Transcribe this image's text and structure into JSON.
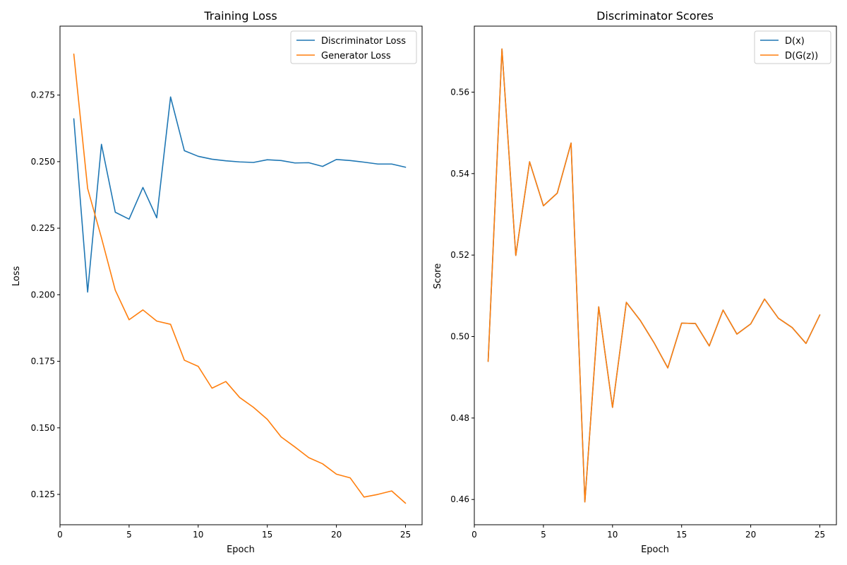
{
  "chart_data": [
    {
      "type": "line",
      "title": "Training Loss",
      "xlabel": "Epoch",
      "ylabel": "Loss",
      "xlim": [
        0.0,
        26.2
      ],
      "ylim": [
        0.1136,
        0.3009
      ],
      "xticks": [
        0,
        5,
        10,
        15,
        20,
        25
      ],
      "yticks": [
        0.125,
        0.15,
        0.175,
        0.2,
        0.225,
        0.25,
        0.275
      ],
      "ytick_decimals": 3,
      "legend_position": "top-right",
      "x": [
        1,
        2,
        3,
        4,
        5,
        6,
        7,
        8,
        9,
        10,
        11,
        12,
        13,
        14,
        15,
        16,
        17,
        18,
        19,
        20,
        21,
        22,
        23,
        24,
        25
      ],
      "series": [
        {
          "name": "Discriminator Loss",
          "color": "#1f77b4",
          "values": [
            0.2661,
            0.201,
            0.2565,
            0.231,
            0.2284,
            0.2403,
            0.2289,
            0.2743,
            0.2541,
            0.252,
            0.2509,
            0.2503,
            0.2499,
            0.2497,
            0.2507,
            0.2504,
            0.2495,
            0.2496,
            0.2482,
            0.2508,
            0.2504,
            0.2498,
            0.2491,
            0.2491,
            0.2479
          ]
        },
        {
          "name": "Generator Loss",
          "color": "#ff7f0e",
          "values": [
            0.2904,
            0.2399,
            0.2214,
            0.2017,
            0.1906,
            0.1943,
            0.1901,
            0.1889,
            0.1754,
            0.1731,
            0.1649,
            0.1674,
            0.1614,
            0.1577,
            0.1532,
            0.1466,
            0.1428,
            0.1388,
            0.1365,
            0.1326,
            0.1312,
            0.124,
            0.125,
            0.1263,
            0.1217
          ]
        }
      ]
    },
    {
      "type": "line",
      "title": "Discriminator Scores",
      "xlabel": "Epoch",
      "ylabel": "Score",
      "xlim": [
        0.0,
        26.2
      ],
      "ylim": [
        0.4538,
        0.5762
      ],
      "xticks": [
        0,
        5,
        10,
        15,
        20,
        25
      ],
      "yticks": [
        0.46,
        0.48,
        0.5,
        0.52,
        0.54,
        0.56
      ],
      "ytick_decimals": 2,
      "legend_position": "top-right",
      "x": [
        1,
        2,
        3,
        4,
        5,
        6,
        7,
        8,
        9,
        10,
        11,
        12,
        13,
        14,
        15,
        16,
        17,
        18,
        19,
        20,
        21,
        22,
        23,
        24,
        25
      ],
      "series": [
        {
          "name": "D(x)",
          "color": "#1f77b4",
          "values": [
            0.4939,
            0.5706,
            0.5199,
            0.5429,
            0.5321,
            0.5352,
            0.5475,
            0.4594,
            0.5073,
            0.4826,
            0.5084,
            0.504,
            0.4985,
            0.4923,
            0.5033,
            0.5032,
            0.4977,
            0.5065,
            0.5006,
            0.5031,
            0.5092,
            0.5045,
            0.5022,
            0.4983,
            0.5053
          ]
        },
        {
          "name": "D(G(z))",
          "color": "#ff7f0e",
          "values": [
            0.4939,
            0.5706,
            0.5199,
            0.5429,
            0.5321,
            0.5352,
            0.5475,
            0.4594,
            0.5073,
            0.4826,
            0.5084,
            0.504,
            0.4985,
            0.4923,
            0.5033,
            0.5032,
            0.4977,
            0.5065,
            0.5006,
            0.5031,
            0.5092,
            0.5045,
            0.5022,
            0.4983,
            0.5053
          ]
        }
      ]
    }
  ]
}
